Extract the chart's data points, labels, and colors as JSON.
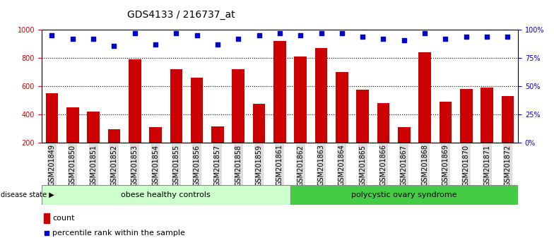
{
  "title": "GDS4133 / 216737_at",
  "samples": [
    "GSM201849",
    "GSM201850",
    "GSM201851",
    "GSM201852",
    "GSM201853",
    "GSM201854",
    "GSM201855",
    "GSM201856",
    "GSM201857",
    "GSM201858",
    "GSM201859",
    "GSM201861",
    "GSM201862",
    "GSM201863",
    "GSM201864",
    "GSM201865",
    "GSM201866",
    "GSM201867",
    "GSM201868",
    "GSM201869",
    "GSM201870",
    "GSM201871",
    "GSM201872"
  ],
  "counts": [
    550,
    450,
    420,
    295,
    790,
    310,
    720,
    660,
    315,
    720,
    475,
    920,
    810,
    870,
    700,
    575,
    480,
    310,
    840,
    490,
    580,
    590,
    530
  ],
  "percentiles": [
    95,
    92,
    92,
    86,
    97,
    87,
    97,
    95,
    87,
    92,
    95,
    97,
    95,
    97,
    97,
    94,
    92,
    91,
    97,
    92,
    94,
    94,
    94
  ],
  "group1_label": "obese healthy controls",
  "group2_label": "polycystic ovary syndrome",
  "group1_count": 12,
  "group2_count": 11,
  "bar_color": "#cc0000",
  "dot_color": "#0000cc",
  "group1_bg": "#ccffcc",
  "group2_bg": "#44cc44",
  "ymin": 200,
  "ymax": 1000,
  "yticks_left": [
    200,
    400,
    600,
    800,
    1000
  ],
  "yticks_right": [
    0,
    25,
    50,
    75,
    100
  ],
  "legend_count_label": "count",
  "legend_pct_label": "percentile rank within the sample",
  "title_fontsize": 10,
  "axis_fontsize": 8,
  "tick_fontsize": 7
}
